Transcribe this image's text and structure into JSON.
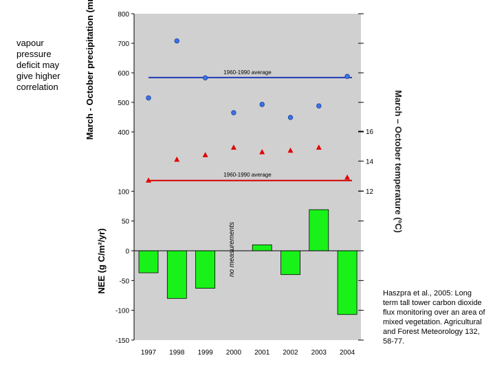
{
  "side_note": "vapour pressure deficit may give higher correlation",
  "citation": "Haszpra et al., 2005: Long term tall tower carbon dioxide flux monitoring over an area of mixed vegetation. Agricultural and Forest Meteorology 132, 58-77.",
  "colors": {
    "plot_bg": "#d0d0d0",
    "precip_marker": "#3b73e6",
    "precip_line": "#1f3bb8",
    "temp_marker": "#e00000",
    "temp_line": "#d40000",
    "bar_fill": "#19f219",
    "bar_stroke": "#000000"
  },
  "chart_data": [
    {
      "type": "scatter",
      "title": "",
      "ylabel": "March - October precipitation (mm)",
      "categories": [
        "1997",
        "1998",
        "1999",
        "2000",
        "2001",
        "2002",
        "2003",
        "2004"
      ],
      "ylim": [
        400,
        800
      ],
      "yticks": [
        "400",
        "500",
        "600",
        "700",
        "800"
      ],
      "values": [
        515,
        708,
        583,
        465,
        493,
        449,
        488,
        588
      ],
      "average": {
        "value": 584,
        "label": "1960-1990 average"
      }
    },
    {
      "type": "scatter",
      "title": "",
      "ylabel": "March – October temperature (ºC)",
      "categories": [
        "1997",
        "1998",
        "1999",
        "2000",
        "2001",
        "2002",
        "2003",
        "2004"
      ],
      "ylim": [
        12,
        16
      ],
      "yticks": [
        "12",
        "14",
        "16"
      ],
      "values": [
        12.7,
        14.1,
        14.4,
        14.9,
        14.6,
        14.7,
        14.9,
        12.9
      ],
      "average": {
        "value": 12.7,
        "label": "1960-1990 average"
      }
    },
    {
      "type": "bar",
      "title": "",
      "xlabel": "",
      "ylabel": "NEE (g C/m²/yr)",
      "categories": [
        "1997",
        "1998",
        "1999",
        "2000",
        "2001",
        "2002",
        "2003",
        "2004"
      ],
      "ylim": [
        -150,
        100
      ],
      "yticks": [
        "-150",
        "-100",
        "-50",
        "0",
        "50",
        "100"
      ],
      "values": [
        -37,
        -80,
        -63,
        null,
        10,
        -40,
        69,
        -107
      ],
      "annotation": {
        "category": "2000",
        "text": "no measurements"
      }
    }
  ]
}
